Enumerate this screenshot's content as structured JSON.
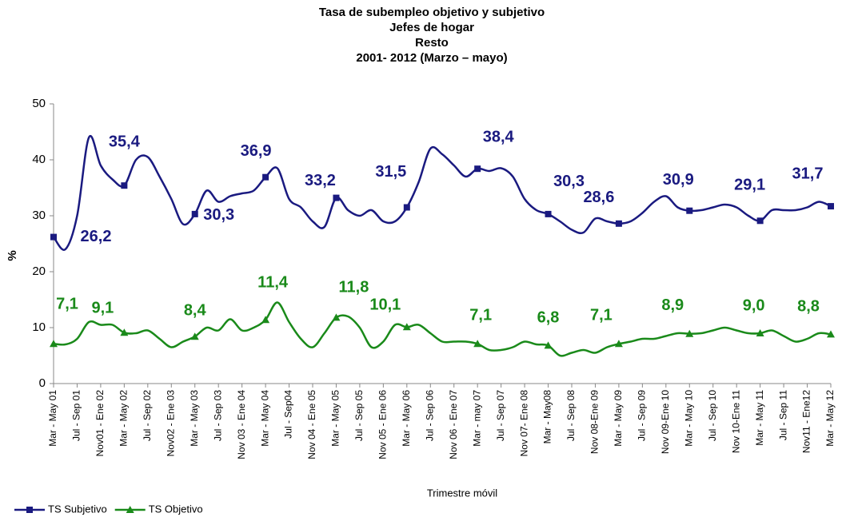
{
  "chart_data": {
    "type": "line",
    "title": [
      "Tasa de subempleo objetivo y subjetivo",
      "Jefes de hogar",
      "Resto",
      "2001- 2012 (Marzo – mayo)"
    ],
    "x_label": "Trimestre móvil",
    "y_label": "%",
    "categories": [
      "Mar - May 01",
      null,
      "Jul - Sep 01",
      null,
      "Nov01 - Ene 02",
      null,
      "Mar - May 02",
      null,
      "Jul - Sep 02",
      null,
      "Nov02 - Ene 03",
      null,
      "Mar - May 03",
      null,
      "Jul - Sep 03",
      null,
      "Nov 03 - Ene 04",
      null,
      "Mar - May 04",
      null,
      "Jul - Sep04",
      null,
      "Nov 04 - Ene 05",
      null,
      "Mar - May 05",
      null,
      "Jul - Sep 05",
      null,
      "Nov 05 - Ene 06",
      null,
      "Mar - May 06",
      null,
      "Jul - Sep 06",
      null,
      "Nov 06 - Ene 07",
      null,
      "Mar - may 07",
      null,
      "Jul - Sep 07",
      null,
      "Nov 07- Ene 08",
      null,
      "Mar - May08",
      null,
      "Jul - Sep 08",
      null,
      "Nov 08-Ene 09",
      null,
      "Mar - May 09",
      null,
      "Jul - Sep 09",
      null,
      "Nov 09-Ene 10",
      null,
      "Mar - May 10",
      null,
      "Jul - Sep 10",
      null,
      "Nov 10-Ene 11",
      null,
      "Mar - May 11",
      null,
      "Jul - Sep 11",
      null,
      "Nov11 - Ene12",
      null,
      "Mar - May 12"
    ],
    "series": [
      {
        "name": "TS Subjetivo",
        "color": "#1a1a80",
        "marker": "square",
        "values": [
          26.2,
          24,
          30,
          44,
          39,
          36.5,
          35.4,
          40,
          40.5,
          37,
          33,
          28.5,
          30.3,
          34.5,
          32.5,
          33.5,
          34,
          34.5,
          36.9,
          38.5,
          33,
          31.5,
          29,
          28,
          33.2,
          31,
          30,
          31,
          29,
          29,
          31.5,
          36,
          42,
          41,
          39,
          37,
          38.4,
          38,
          38.5,
          37,
          33,
          31,
          30.3,
          29,
          27.5,
          27,
          29.5,
          29,
          28.6,
          29,
          30.5,
          32.5,
          33.5,
          31.5,
          30.9,
          31,
          31.5,
          32,
          31.5,
          30,
          29.1,
          31,
          31,
          31,
          31.5,
          32.5,
          31.7
        ],
        "value_labels": [
          "26,2",
          null,
          null,
          null,
          null,
          null,
          "35,4",
          null,
          null,
          null,
          null,
          null,
          "30,3",
          null,
          null,
          null,
          null,
          null,
          "36,9",
          null,
          null,
          null,
          null,
          null,
          "33,2",
          null,
          null,
          null,
          null,
          null,
          "31,5",
          null,
          null,
          null,
          null,
          null,
          "38,4",
          null,
          null,
          null,
          null,
          null,
          "30,3",
          null,
          null,
          null,
          null,
          null,
          "28,6",
          null,
          null,
          null,
          null,
          null,
          "30,9",
          null,
          null,
          null,
          null,
          null,
          "29,1",
          null,
          null,
          null,
          null,
          null,
          "31,7"
        ]
      },
      {
        "name": "TS Objetivo",
        "color": "#1a8a1a",
        "marker": "triangle",
        "values": [
          7.1,
          7,
          8,
          11,
          10.5,
          10.5,
          9.1,
          9,
          9.5,
          8,
          6.5,
          7.5,
          8.4,
          10,
          9.5,
          11.5,
          9.5,
          10,
          11.4,
          14.5,
          11,
          8,
          6.5,
          9,
          11.8,
          12,
          10,
          6.5,
          7.5,
          10.5,
          10.1,
          10.5,
          9,
          7.5,
          7.5,
          7.5,
          7.1,
          6,
          6,
          6.5,
          7.5,
          7,
          6.8,
          5,
          5.5,
          6,
          5.5,
          6.5,
          7.1,
          7.5,
          8,
          8,
          8.5,
          9,
          8.9,
          9,
          9.5,
          10,
          9.5,
          9,
          9.0,
          9.5,
          8.5,
          7.5,
          8,
          9,
          8.8
        ],
        "value_labels": [
          "7,1",
          null,
          null,
          null,
          null,
          null,
          "9,1",
          null,
          null,
          null,
          null,
          null,
          "8,4",
          null,
          null,
          null,
          null,
          null,
          "11,4",
          null,
          null,
          null,
          null,
          null,
          "11,8",
          null,
          null,
          null,
          null,
          null,
          "10,1",
          null,
          null,
          null,
          null,
          null,
          "7,1",
          null,
          null,
          null,
          null,
          null,
          "6,8",
          null,
          null,
          null,
          null,
          null,
          "7,1",
          null,
          null,
          null,
          null,
          null,
          "8,9",
          null,
          null,
          null,
          null,
          null,
          "9,0",
          null,
          null,
          null,
          null,
          null,
          "8,8"
        ]
      }
    ],
    "ylim": [
      0,
      50
    ],
    "yticks": [
      0,
      10,
      20,
      30,
      40,
      50
    ],
    "grid": false,
    "legend": "bottom-left"
  }
}
